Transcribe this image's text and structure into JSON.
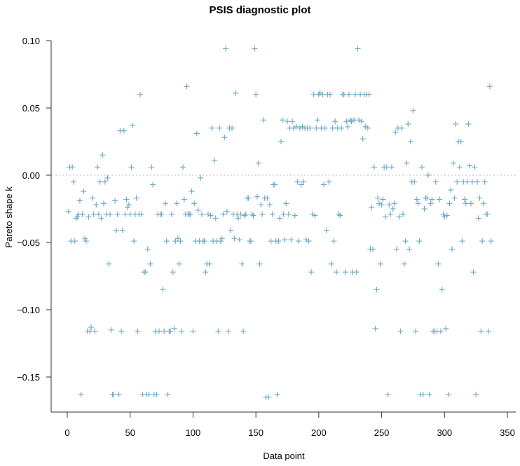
{
  "chart_data": {
    "type": "scatter",
    "title": "PSIS diagnostic plot",
    "xlabel": "Data point",
    "ylabel": "Pareto shape k",
    "xlim": [
      -10,
      355
    ],
    "ylim": [
      -0.175,
      0.1
    ],
    "x_ticks": [
      0,
      50,
      100,
      150,
      200,
      250,
      300,
      350
    ],
    "y_ticks": [
      0.1,
      0.05,
      0.0,
      -0.05,
      -0.1,
      -0.15
    ],
    "y_tick_labels": [
      "0.10",
      "0.05",
      "0.00",
      "−0.05",
      "−0.10",
      "−0.15"
    ],
    "grid": false,
    "reference_line": {
      "y": 0.0,
      "style": "dotted",
      "color": "#bbbbbb"
    },
    "marker": "+",
    "marker_color": "#6aa6c6",
    "legend": null,
    "points": [
      [
        1,
        -0.027
      ],
      [
        2,
        0.006
      ],
      [
        3,
        -0.049
      ],
      [
        4,
        0.006
      ],
      [
        5,
        -0.005
      ],
      [
        6,
        -0.049
      ],
      [
        7,
        -0.032
      ],
      [
        8,
        -0.031
      ],
      [
        9,
        -0.029
      ],
      [
        10,
        -0.019
      ],
      [
        11,
        -0.163
      ],
      [
        12,
        -0.029
      ],
      [
        13,
        -0.012
      ],
      [
        14,
        -0.047
      ],
      [
        15,
        -0.049
      ],
      [
        16,
        -0.116
      ],
      [
        17,
        -0.031
      ],
      [
        18,
        -0.116
      ],
      [
        19,
        -0.113
      ],
      [
        20,
        -0.017
      ],
      [
        21,
        -0.029
      ],
      [
        22,
        -0.116
      ],
      [
        23,
        -0.022
      ],
      [
        24,
        0.006
      ],
      [
        25,
        -0.029
      ],
      [
        26,
        -0.005
      ],
      [
        27,
        -0.032
      ],
      [
        28,
        0.015
      ],
      [
        29,
        -0.021
      ],
      [
        30,
        -0.005
      ],
      [
        31,
        -0.029
      ],
      [
        32,
        -0.002
      ],
      [
        33,
        -0.066
      ],
      [
        34,
        -0.029
      ],
      [
        35,
        -0.115
      ],
      [
        36,
        -0.163
      ],
      [
        37,
        -0.163
      ],
      [
        38,
        -0.019
      ],
      [
        39,
        -0.041
      ],
      [
        40,
        -0.029
      ],
      [
        41,
        -0.163
      ],
      [
        42,
        0.033
      ],
      [
        43,
        -0.116
      ],
      [
        44,
        -0.041
      ],
      [
        45,
        0.033
      ],
      [
        46,
        -0.029
      ],
      [
        47,
        -0.018
      ],
      [
        48,
        -0.024
      ],
      [
        49,
        -0.022
      ],
      [
        50,
        -0.029
      ],
      [
        51,
        0.006
      ],
      [
        52,
        0.037
      ],
      [
        53,
        -0.049
      ],
      [
        54,
        -0.029
      ],
      [
        55,
        -0.017
      ],
      [
        56,
        -0.116
      ],
      [
        57,
        -0.029
      ],
      [
        58,
        0.06
      ],
      [
        59,
        -0.029
      ],
      [
        60,
        -0.163
      ],
      [
        61,
        -0.072
      ],
      [
        62,
        -0.072
      ],
      [
        63,
        -0.163
      ],
      [
        64,
        -0.055
      ],
      [
        65,
        -0.163
      ],
      [
        66,
        -0.066
      ],
      [
        67,
        0.006
      ],
      [
        68,
        -0.007
      ],
      [
        69,
        -0.163
      ],
      [
        70,
        -0.116
      ],
      [
        71,
        -0.163
      ],
      [
        72,
        -0.029
      ],
      [
        73,
        -0.116
      ],
      [
        74,
        -0.029
      ],
      [
        75,
        -0.029
      ],
      [
        76,
        -0.085
      ],
      [
        77,
        -0.116
      ],
      [
        78,
        -0.021
      ],
      [
        79,
        -0.049
      ],
      [
        80,
        -0.163
      ],
      [
        81,
        -0.116
      ],
      [
        82,
        -0.116
      ],
      [
        83,
        -0.029
      ],
      [
        84,
        -0.072
      ],
      [
        85,
        -0.114
      ],
      [
        86,
        -0.049
      ],
      [
        87,
        -0.021
      ],
      [
        88,
        -0.047
      ],
      [
        89,
        -0.066
      ],
      [
        90,
        -0.049
      ],
      [
        91,
        -0.116
      ],
      [
        92,
        0.006
      ],
      [
        93,
        -0.018
      ],
      [
        94,
        -0.029
      ],
      [
        95,
        0.066
      ],
      [
        96,
        -0.029
      ],
      [
        97,
        -0.029
      ],
      [
        98,
        -0.029
      ],
      [
        99,
        -0.012
      ],
      [
        100,
        -0.116
      ],
      [
        101,
        -0.021
      ],
      [
        102,
        -0.049
      ],
      [
        103,
        0.031
      ],
      [
        104,
        -0.026
      ],
      [
        105,
        -0.049
      ],
      [
        106,
        -0.002
      ],
      [
        107,
        -0.029
      ],
      [
        108,
        -0.049
      ],
      [
        109,
        -0.049
      ],
      [
        110,
        -0.072
      ],
      [
        111,
        -0.066
      ],
      [
        112,
        -0.029
      ],
      [
        113,
        -0.066
      ],
      [
        114,
        -0.03
      ],
      [
        115,
        0.035
      ],
      [
        116,
        -0.049
      ],
      [
        117,
        0.011
      ],
      [
        118,
        -0.032
      ],
      [
        119,
        -0.049
      ],
      [
        120,
        -0.116
      ],
      [
        121,
        0.035
      ],
      [
        122,
        -0.049
      ],
      [
        123,
        -0.047
      ],
      [
        124,
        -0.029
      ],
      [
        125,
        0.028
      ],
      [
        126,
        0.094
      ],
      [
        127,
        -0.027
      ],
      [
        128,
        -0.116
      ],
      [
        129,
        0.035
      ],
      [
        130,
        -0.041
      ],
      [
        131,
        0.035
      ],
      [
        132,
        -0.029
      ],
      [
        133,
        -0.047
      ],
      [
        134,
        0.061
      ],
      [
        135,
        -0.029
      ],
      [
        136,
        -0.032
      ],
      [
        137,
        -0.048
      ],
      [
        138,
        -0.029
      ],
      [
        139,
        -0.066
      ],
      [
        140,
        -0.116
      ],
      [
        141,
        -0.03
      ],
      [
        142,
        -0.029
      ],
      [
        143,
        -0.017
      ],
      [
        144,
        -0.017
      ],
      [
        145,
        -0.049
      ],
      [
        146,
        -0.049
      ],
      [
        147,
        -0.029
      ],
      [
        148,
        -0.03
      ],
      [
        149,
        0.094
      ],
      [
        150,
        0.06
      ],
      [
        151,
        -0.016
      ],
      [
        152,
        0.009
      ],
      [
        153,
        -0.066
      ],
      [
        154,
        -0.022
      ],
      [
        155,
        -0.029
      ],
      [
        156,
        0.041
      ],
      [
        157,
        -0.017
      ],
      [
        158,
        -0.165
      ],
      [
        159,
        -0.017
      ],
      [
        160,
        -0.165
      ],
      [
        161,
        -0.022
      ],
      [
        162,
        -0.049
      ],
      [
        163,
        -0.029
      ],
      [
        164,
        -0.007
      ],
      [
        165,
        -0.007
      ],
      [
        166,
        -0.049
      ],
      [
        167,
        -0.163
      ],
      [
        168,
        -0.049
      ],
      [
        169,
        -0.032
      ],
      [
        170,
        0.025
      ],
      [
        171,
        0.041
      ],
      [
        172,
        -0.029
      ],
      [
        173,
        -0.048
      ],
      [
        174,
        -0.021
      ],
      [
        175,
        0.04
      ],
      [
        176,
        -0.029
      ],
      [
        177,
        0.035
      ],
      [
        178,
        -0.048
      ],
      [
        179,
        0.04
      ],
      [
        180,
        0.035
      ],
      [
        181,
        -0.03
      ],
      [
        182,
        0.036
      ],
      [
        183,
        -0.005
      ],
      [
        184,
        -0.049
      ],
      [
        185,
        0.035
      ],
      [
        186,
        -0.007
      ],
      [
        187,
        0.036
      ],
      [
        188,
        -0.005
      ],
      [
        189,
        0.035
      ],
      [
        190,
        -0.048
      ],
      [
        191,
        0.035
      ],
      [
        192,
        -0.049
      ],
      [
        193,
        0.035
      ],
      [
        194,
        -0.072
      ],
      [
        195,
        -0.029
      ],
      [
        196,
        0.06
      ],
      [
        197,
        -0.03
      ],
      [
        198,
        0.035
      ],
      [
        199,
        0.041
      ],
      [
        200,
        0.06
      ],
      [
        201,
        0.061
      ],
      [
        202,
        0.035
      ],
      [
        203,
        0.06
      ],
      [
        204,
        -0.007
      ],
      [
        205,
        0.035
      ],
      [
        206,
        -0.041
      ],
      [
        207,
        0.06
      ],
      [
        208,
        -0.005
      ],
      [
        209,
        0.06
      ],
      [
        210,
        -0.066
      ],
      [
        211,
        0.035
      ],
      [
        212,
        -0.049
      ],
      [
        213,
        0.04
      ],
      [
        214,
        -0.072
      ],
      [
        215,
        0.035
      ],
      [
        216,
        -0.029
      ],
      [
        217,
        -0.03
      ],
      [
        218,
        0.035
      ],
      [
        219,
        0.06
      ],
      [
        220,
        0.06
      ],
      [
        221,
        -0.072
      ],
      [
        222,
        0.04
      ],
      [
        223,
        0.036
      ],
      [
        224,
        0.06
      ],
      [
        225,
        0.041
      ],
      [
        226,
        0.04
      ],
      [
        227,
        -0.072
      ],
      [
        228,
        0.041
      ],
      [
        229,
        0.06
      ],
      [
        230,
        -0.072
      ],
      [
        231,
        0.094
      ],
      [
        232,
        0.041
      ],
      [
        233,
        0.06
      ],
      [
        234,
        0.04
      ],
      [
        235,
        0.027
      ],
      [
        236,
        0.06
      ],
      [
        237,
        0.036
      ],
      [
        238,
        0.06
      ],
      [
        239,
        0.035
      ],
      [
        240,
        0.06
      ],
      [
        241,
        -0.055
      ],
      [
        242,
        -0.024
      ],
      [
        243,
        -0.055
      ],
      [
        244,
        0.006
      ],
      [
        245,
        -0.114
      ],
      [
        246,
        -0.085
      ],
      [
        247,
        -0.017
      ],
      [
        248,
        -0.021
      ],
      [
        249,
        -0.066
      ],
      [
        250,
        -0.022
      ],
      [
        251,
        -0.018
      ],
      [
        252,
        0.006
      ],
      [
        253,
        -0.031
      ],
      [
        254,
        0.006
      ],
      [
        255,
        -0.163
      ],
      [
        256,
        -0.022
      ],
      [
        257,
        -0.029
      ],
      [
        258,
        0.006
      ],
      [
        259,
        -0.025
      ],
      [
        260,
        -0.021
      ],
      [
        261,
        0.032
      ],
      [
        262,
        -0.055
      ],
      [
        263,
        0.035
      ],
      [
        264,
        -0.031
      ],
      [
        265,
        -0.116
      ],
      [
        266,
        0.035
      ],
      [
        267,
        -0.029
      ],
      [
        268,
        -0.066
      ],
      [
        269,
        -0.049
      ],
      [
        270,
        0.009
      ],
      [
        271,
        0.038
      ],
      [
        272,
        -0.055
      ],
      [
        273,
        0.025
      ],
      [
        274,
        -0.005
      ],
      [
        275,
        0.048
      ],
      [
        276,
        -0.005
      ],
      [
        277,
        -0.116
      ],
      [
        278,
        -0.018
      ],
      [
        279,
        -0.021
      ],
      [
        280,
        -0.049
      ],
      [
        281,
        -0.163
      ],
      [
        282,
        0.006
      ],
      [
        283,
        -0.163
      ],
      [
        284,
        -0.025
      ],
      [
        285,
        -0.017
      ],
      [
        286,
        -0.017
      ],
      [
        287,
        0.0
      ],
      [
        288,
        -0.163
      ],
      [
        289,
        -0.021
      ],
      [
        290,
        -0.018
      ],
      [
        291,
        -0.116
      ],
      [
        292,
        -0.116
      ],
      [
        293,
        -0.005
      ],
      [
        294,
        -0.116
      ],
      [
        295,
        -0.066
      ],
      [
        296,
        -0.018
      ],
      [
        297,
        -0.116
      ],
      [
        298,
        -0.085
      ],
      [
        299,
        -0.029
      ],
      [
        300,
        -0.031
      ],
      [
        301,
        -0.114
      ],
      [
        302,
        -0.03
      ],
      [
        303,
        -0.163
      ],
      [
        304,
        -0.021
      ],
      [
        305,
        -0.011
      ],
      [
        306,
        -0.055
      ],
      [
        307,
        0.009
      ],
      [
        308,
        -0.017
      ],
      [
        309,
        0.038
      ],
      [
        310,
        -0.005
      ],
      [
        311,
        0.025
      ],
      [
        312,
        0.006
      ],
      [
        313,
        0.025
      ],
      [
        314,
        -0.049
      ],
      [
        315,
        -0.005
      ],
      [
        316,
        -0.018
      ],
      [
        317,
        -0.021
      ],
      [
        318,
        -0.005
      ],
      [
        319,
        0.038
      ],
      [
        320,
        0.007
      ],
      [
        321,
        -0.021
      ],
      [
        322,
        -0.005
      ],
      [
        323,
        -0.072
      ],
      [
        324,
        0.006
      ],
      [
        325,
        -0.163
      ],
      [
        326,
        -0.005
      ],
      [
        327,
        -0.032
      ],
      [
        328,
        -0.017
      ],
      [
        329,
        -0.116
      ],
      [
        330,
        -0.049
      ],
      [
        331,
        -0.021
      ],
      [
        332,
        -0.005
      ],
      [
        333,
        -0.029
      ],
      [
        334,
        -0.029
      ],
      [
        335,
        -0.116
      ],
      [
        336,
        0.066
      ],
      [
        337,
        -0.049
      ]
    ]
  }
}
